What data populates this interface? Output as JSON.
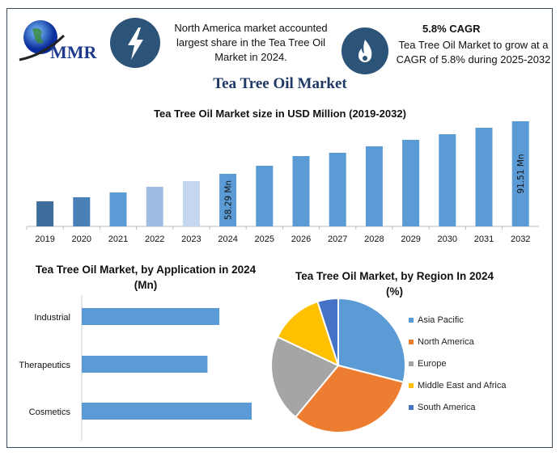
{
  "header": {
    "logo_text": "MMR",
    "icon1": "lightning-icon",
    "fact1": "North America market accounted largest share in the Tea Tree Oil Market in 2024.",
    "icon2": "flame-icon",
    "fact2_title": "5.8% CAGR",
    "fact2": "Tea Tree Oil Market to grow at a CAGR of 5.8% during 2025-2032",
    "title": "Tea Tree Oil Market"
  },
  "colors": {
    "frame": "#3b4a58",
    "icon_bg": "#2c5378",
    "title": "#1f3864",
    "bar": "#5b9bd5"
  },
  "chart_data": [
    {
      "type": "bar",
      "title": "Tea Tree Oil Market size in USD Million (2019-2032)",
      "categories": [
        "2019",
        "2020",
        "2021",
        "2022",
        "2023",
        "2024",
        "2025",
        "2026",
        "2027",
        "2028",
        "2029",
        "2030",
        "2031",
        "2032"
      ],
      "values": [
        40.9,
        43.5,
        46.5,
        50.1,
        53.7,
        58.29,
        63.4,
        69.5,
        71.6,
        75.7,
        79.8,
        83.3,
        87.4,
        91.51
      ],
      "colors": [
        "#3e6e9c",
        "#4a80b8",
        "#5b9bd5",
        "#9dbde3",
        "#c5d7ee",
        "#5b9bd5",
        "#5b9bd5",
        "#5b9bd5",
        "#5b9bd5",
        "#5b9bd5",
        "#5b9bd5",
        "#5b9bd5",
        "#5b9bd5",
        "#5b9bd5"
      ],
      "data_labels": {
        "2024": "58.29 Mn",
        "2032": "91.51 Mn"
      },
      "ylim": [
        25,
        95
      ],
      "grid": false
    },
    {
      "type": "bar",
      "orientation": "horizontal",
      "title": "Tea Tree Oil Market, by Application in 2024 (Mn)",
      "categories": [
        "Industrial",
        "Therapeutics",
        "Cosmetics"
      ],
      "values_relative": [
        0.81,
        0.74,
        1.0
      ],
      "color": "#5b9bd5"
    },
    {
      "type": "pie",
      "title": "Tea Tree Oil Market, by Region In 2024 (%)",
      "labels": [
        "Asia Pacific",
        "North America",
        "Europe",
        "Middle East and Africa",
        "South America"
      ],
      "values": [
        29,
        32,
        21,
        13,
        5
      ],
      "colors": [
        "#5b9bd5",
        "#ed7d31",
        "#a5a5a5",
        "#ffc000",
        "#4472c4"
      ],
      "legend": "right"
    }
  ]
}
